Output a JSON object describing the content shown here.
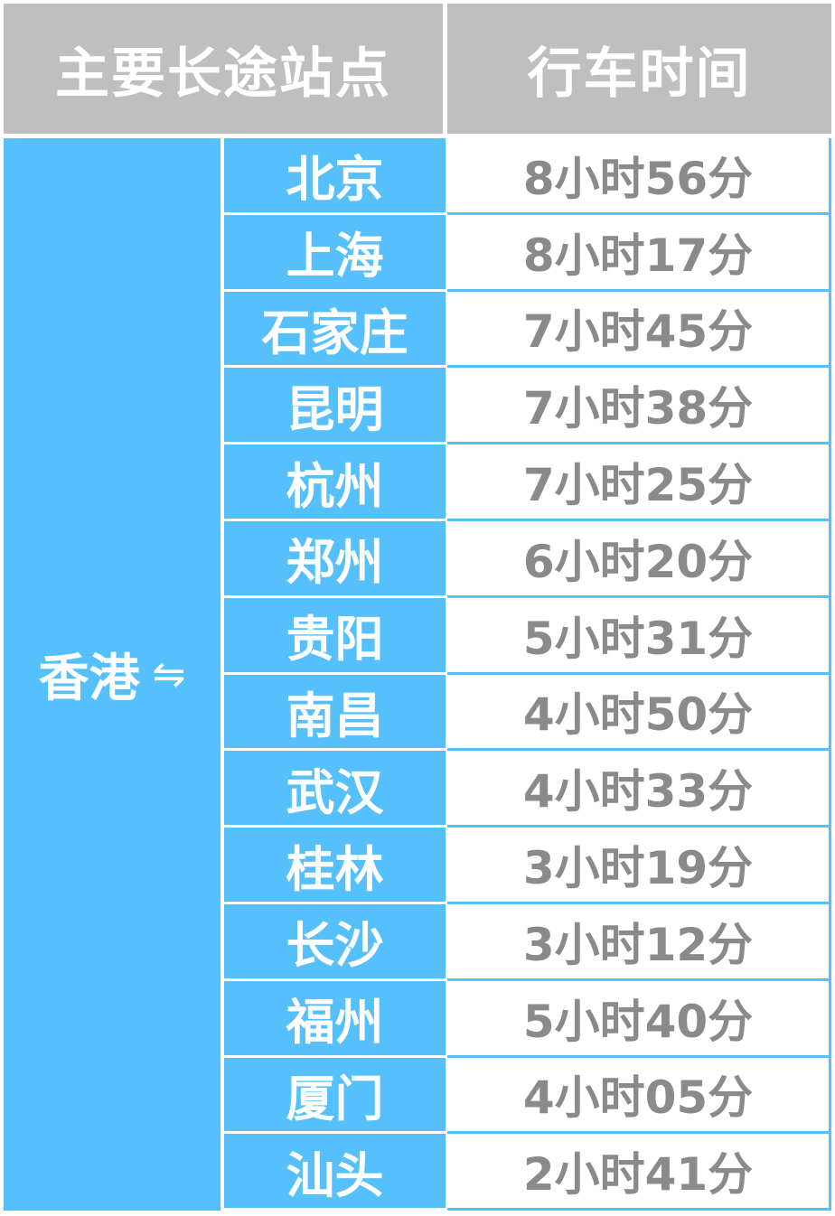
{
  "header": {
    "col1": "主要长途站点",
    "col2": "行车时间"
  },
  "origin": {
    "name": "香港",
    "arrow": "⇋"
  },
  "colors": {
    "blue": "#55c0fb",
    "header_gray": "#bfbfbf",
    "time_text": "#8a8a8a"
  },
  "rows": [
    {
      "city": "北京",
      "time": "8小时56分"
    },
    {
      "city": "上海",
      "time": "8小时17分"
    },
    {
      "city": "石家庄",
      "time": "7小时45分"
    },
    {
      "city": "昆明",
      "time": "7小时38分"
    },
    {
      "city": "杭州",
      "time": "7小时25分"
    },
    {
      "city": "郑州",
      "time": "6小时20分"
    },
    {
      "city": "贵阳",
      "time": "5小时31分"
    },
    {
      "city": "南昌",
      "time": "4小时50分"
    },
    {
      "city": "武汉",
      "time": "4小时33分"
    },
    {
      "city": "桂林",
      "time": "3小时19分"
    },
    {
      "city": "长沙",
      "time": "3小时12分"
    },
    {
      "city": "福州",
      "time": "5小时40分"
    },
    {
      "city": "厦门",
      "time": "4小时05分"
    },
    {
      "city": "汕头",
      "time": "2小时41分"
    }
  ]
}
